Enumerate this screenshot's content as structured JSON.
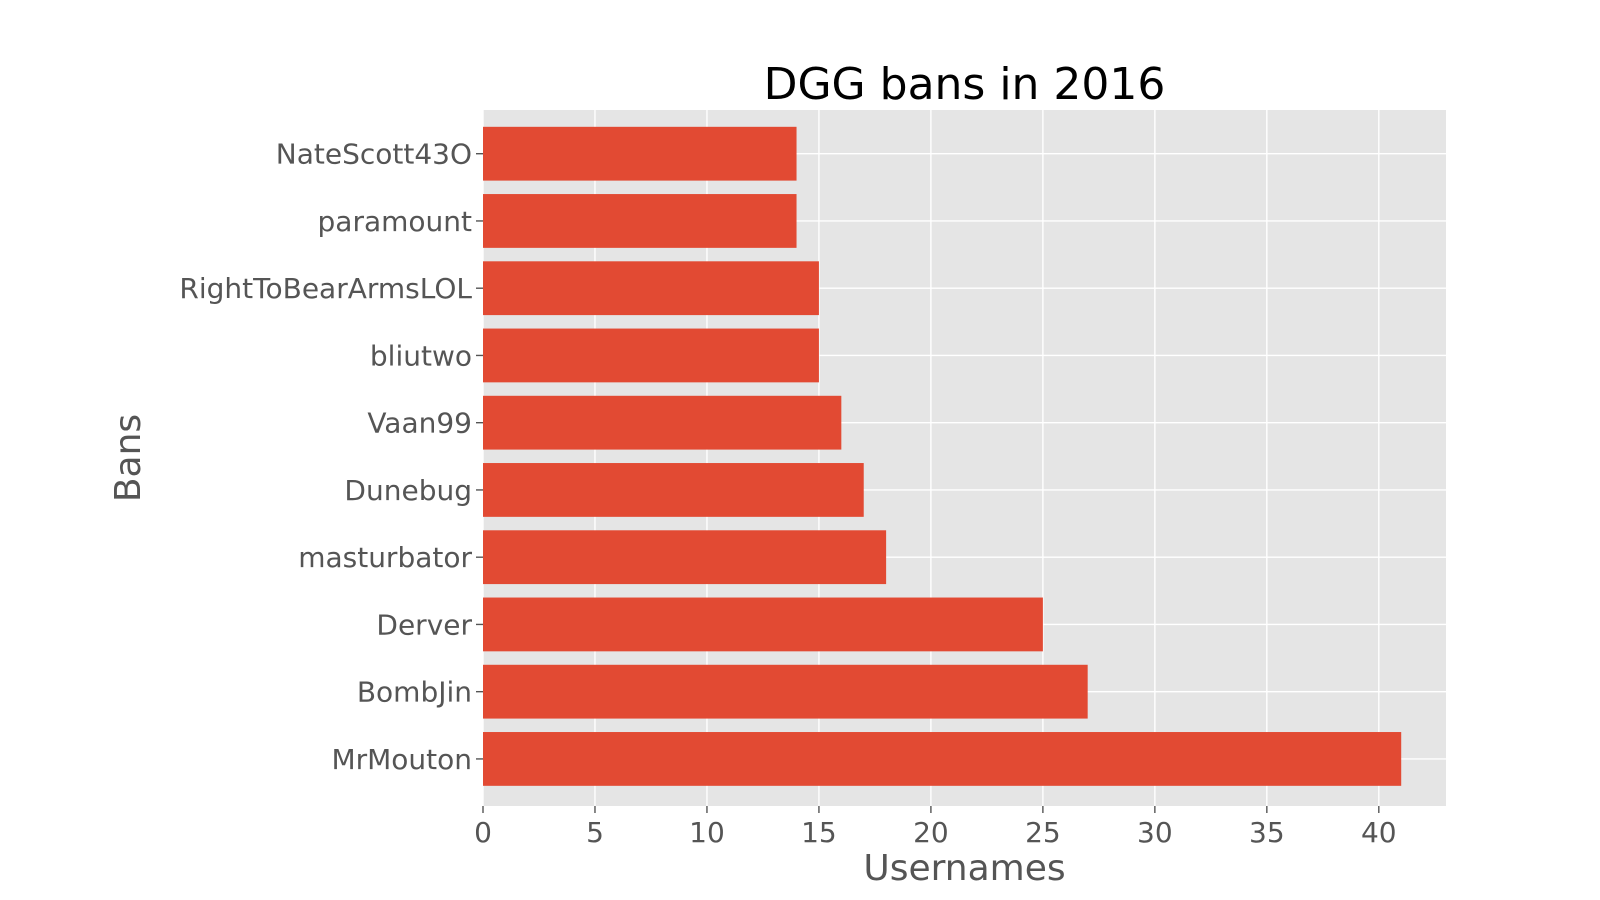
{
  "chart_data": {
    "type": "bar",
    "orientation": "horizontal",
    "title": "DGG bans in 2016",
    "xlabel": "Usernames",
    "ylabel": "Bans",
    "categories": [
      "MrMouton",
      "BombJin",
      "Derver",
      "masturbator",
      "Dunebug",
      "Vaan99",
      "bliutwo",
      "RightToBearArmsLOL",
      "paramount",
      "NateScott43O"
    ],
    "values": [
      41,
      27,
      25,
      18,
      17,
      16,
      15,
      15,
      14,
      14
    ],
    "xlim": [
      0,
      43
    ],
    "xticks": [
      0,
      5,
      10,
      15,
      20,
      25,
      30,
      35,
      40
    ],
    "grid": true,
    "colors": {
      "bar": "#E24A33",
      "plot_background": "#E5E5E5",
      "grid": "#FFFFFF",
      "tick_text": "#555555",
      "title_text": "#000000"
    }
  }
}
